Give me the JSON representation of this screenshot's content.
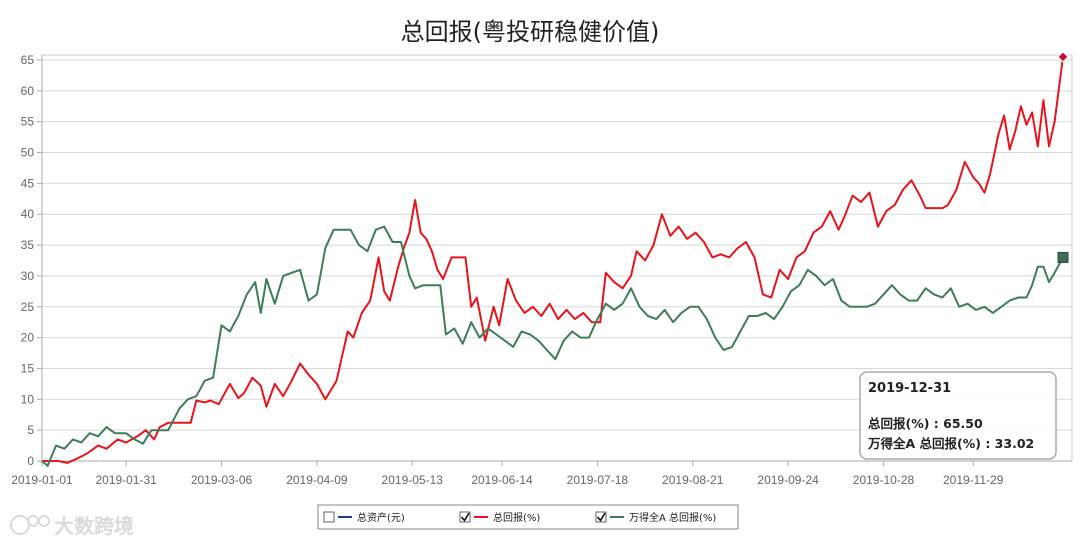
{
  "chart_data": {
    "type": "line",
    "title": "总回报(粤投研稳健价值)",
    "ylim": [
      0,
      65
    ],
    "yticks": [
      0,
      5,
      10,
      15,
      20,
      25,
      30,
      35,
      40,
      45,
      50,
      55,
      60,
      65
    ],
    "xlim": [
      "2019-01-01",
      "2019-12-31"
    ],
    "xticks": [
      "2019-01-01",
      "2019-01-31",
      "2019-03-06",
      "2019-04-09",
      "2019-05-13",
      "2019-06-14",
      "2019-07-18",
      "2019-08-21",
      "2019-09-24",
      "2019-10-28",
      "2019-11-29"
    ],
    "grid": true,
    "series": [
      {
        "name": "总回报(%)",
        "color": "#e8141c",
        "points": [
          [
            "2019-01-01",
            0
          ],
          [
            "2019-01-07",
            0
          ],
          [
            "2019-01-10",
            -0.3
          ],
          [
            "2019-01-14",
            0.5
          ],
          [
            "2019-01-17",
            1.2
          ],
          [
            "2019-01-21",
            2.5
          ],
          [
            "2019-01-24",
            2.0
          ],
          [
            "2019-01-28",
            3.5
          ],
          [
            "2019-01-31",
            3.0
          ],
          [
            "2019-02-04",
            4.0
          ],
          [
            "2019-02-07",
            5.0
          ],
          [
            "2019-02-10",
            3.5
          ],
          [
            "2019-02-12",
            5.5
          ],
          [
            "2019-02-15",
            6.2
          ],
          [
            "2019-02-19",
            6.2
          ],
          [
            "2019-02-23",
            6.2
          ],
          [
            "2019-02-25",
            9.8
          ],
          [
            "2019-02-28",
            9.5
          ],
          [
            "2019-03-02",
            9.8
          ],
          [
            "2019-03-05",
            9.2
          ],
          [
            "2019-03-09",
            12.5
          ],
          [
            "2019-03-12",
            10.2
          ],
          [
            "2019-03-14",
            11.0
          ],
          [
            "2019-03-17",
            13.5
          ],
          [
            "2019-03-20",
            12.2
          ],
          [
            "2019-03-22",
            8.8
          ],
          [
            "2019-03-25",
            12.5
          ],
          [
            "2019-03-28",
            10.5
          ],
          [
            "2019-03-31",
            13.0
          ],
          [
            "2019-04-03",
            15.8
          ],
          [
            "2019-04-06",
            14.0
          ],
          [
            "2019-04-09",
            12.5
          ],
          [
            "2019-04-12",
            10.0
          ],
          [
            "2019-04-14",
            11.5
          ],
          [
            "2019-04-16",
            13.0
          ],
          [
            "2019-04-20",
            21.0
          ],
          [
            "2019-04-22",
            20.0
          ],
          [
            "2019-04-25",
            24.0
          ],
          [
            "2019-04-28",
            26.0
          ],
          [
            "2019-05-01",
            33.0
          ],
          [
            "2019-05-03",
            27.5
          ],
          [
            "2019-05-05",
            26.0
          ],
          [
            "2019-05-08",
            31.5
          ],
          [
            "2019-05-10",
            34.5
          ],
          [
            "2019-05-12",
            37.0
          ],
          [
            "2019-05-14",
            42.3
          ],
          [
            "2019-05-16",
            37.0
          ],
          [
            "2019-05-18",
            36.0
          ],
          [
            "2019-05-20",
            34.0
          ],
          [
            "2019-05-22",
            31.0
          ],
          [
            "2019-05-24",
            29.5
          ],
          [
            "2019-05-27",
            33.0
          ],
          [
            "2019-05-30",
            33.0
          ],
          [
            "2019-06-01",
            33.0
          ],
          [
            "2019-06-03",
            25.0
          ],
          [
            "2019-06-05",
            26.5
          ],
          [
            "2019-06-08",
            19.5
          ],
          [
            "2019-06-11",
            25.0
          ],
          [
            "2019-06-13",
            22.0
          ],
          [
            "2019-06-16",
            29.5
          ],
          [
            "2019-06-19",
            26.0
          ],
          [
            "2019-06-22",
            24.0
          ],
          [
            "2019-06-25",
            25.0
          ],
          [
            "2019-06-28",
            23.5
          ],
          [
            "2019-07-01",
            25.5
          ],
          [
            "2019-07-04",
            23.0
          ],
          [
            "2019-07-07",
            24.5
          ],
          [
            "2019-07-10",
            23.0
          ],
          [
            "2019-07-13",
            24.0
          ],
          [
            "2019-07-16",
            22.5
          ],
          [
            "2019-07-19",
            22.5
          ],
          [
            "2019-07-21",
            30.5
          ],
          [
            "2019-07-24",
            29.0
          ],
          [
            "2019-07-27",
            28.0
          ],
          [
            "2019-07-30",
            30.0
          ],
          [
            "2019-08-01",
            34.0
          ],
          [
            "2019-08-04",
            32.5
          ],
          [
            "2019-08-07",
            35.0
          ],
          [
            "2019-08-10",
            40.0
          ],
          [
            "2019-08-13",
            36.5
          ],
          [
            "2019-08-16",
            38.0
          ],
          [
            "2019-08-19",
            36.0
          ],
          [
            "2019-08-22",
            37.0
          ],
          [
            "2019-08-25",
            35.5
          ],
          [
            "2019-08-28",
            33.0
          ],
          [
            "2019-08-31",
            33.5
          ],
          [
            "2019-09-03",
            33.0
          ],
          [
            "2019-09-06",
            34.5
          ],
          [
            "2019-09-09",
            35.5
          ],
          [
            "2019-09-12",
            33.0
          ],
          [
            "2019-09-15",
            27.0
          ],
          [
            "2019-09-18",
            26.5
          ],
          [
            "2019-09-21",
            31.0
          ],
          [
            "2019-09-24",
            29.5
          ],
          [
            "2019-09-27",
            33.0
          ],
          [
            "2019-09-30",
            34.0
          ],
          [
            "2019-10-03",
            37.0
          ],
          [
            "2019-10-06",
            38.0
          ],
          [
            "2019-10-09",
            40.5
          ],
          [
            "2019-10-12",
            37.5
          ],
          [
            "2019-10-14",
            39.5
          ],
          [
            "2019-10-17",
            43.0
          ],
          [
            "2019-10-20",
            42.0
          ],
          [
            "2019-10-23",
            43.5
          ],
          [
            "2019-10-26",
            38.0
          ],
          [
            "2019-10-29",
            40.5
          ],
          [
            "2019-11-01",
            41.5
          ],
          [
            "2019-11-04",
            44.0
          ],
          [
            "2019-11-07",
            45.5
          ],
          [
            "2019-11-10",
            43.0
          ],
          [
            "2019-11-12",
            41.0
          ],
          [
            "2019-11-15",
            41.0
          ],
          [
            "2019-11-18",
            41.0
          ],
          [
            "2019-11-20",
            41.5
          ],
          [
            "2019-11-23",
            44.0
          ],
          [
            "2019-11-26",
            48.5
          ],
          [
            "2019-11-29",
            46.0
          ],
          [
            "2019-12-01",
            45.0
          ],
          [
            "2019-12-03",
            43.5
          ],
          [
            "2019-12-05",
            46.5
          ],
          [
            "2019-12-08",
            53.0
          ],
          [
            "2019-12-10",
            56.0
          ],
          [
            "2019-12-12",
            50.5
          ],
          [
            "2019-12-14",
            53.5
          ],
          [
            "2019-12-16",
            57.5
          ],
          [
            "2019-12-18",
            54.5
          ],
          [
            "2019-12-20",
            56.5
          ],
          [
            "2019-12-22",
            51.0
          ],
          [
            "2019-12-24",
            58.5
          ],
          [
            "2019-12-26",
            51.0
          ],
          [
            "2019-12-28",
            55.0
          ],
          [
            "2019-12-31",
            65.5
          ]
        ]
      },
      {
        "name": "万得全A 总回报(%)",
        "color": "#3e7d5a",
        "points": [
          [
            "2019-01-01",
            0
          ],
          [
            "2019-01-03",
            -0.8
          ],
          [
            "2019-01-06",
            2.5
          ],
          [
            "2019-01-09",
            2.0
          ],
          [
            "2019-01-12",
            3.5
          ],
          [
            "2019-01-15",
            3.0
          ],
          [
            "2019-01-18",
            4.5
          ],
          [
            "2019-01-21",
            4.0
          ],
          [
            "2019-01-24",
            5.5
          ],
          [
            "2019-01-27",
            4.5
          ],
          [
            "2019-01-31",
            4.5
          ],
          [
            "2019-02-03",
            3.5
          ],
          [
            "2019-02-06",
            2.8
          ],
          [
            "2019-02-09",
            5.0
          ],
          [
            "2019-02-12",
            5.0
          ],
          [
            "2019-02-15",
            5.0
          ],
          [
            "2019-02-19",
            8.5
          ],
          [
            "2019-02-22",
            10.0
          ],
          [
            "2019-02-25",
            10.5
          ],
          [
            "2019-02-28",
            13.0
          ],
          [
            "2019-03-03",
            13.5
          ],
          [
            "2019-03-06",
            22.0
          ],
          [
            "2019-03-09",
            21.0
          ],
          [
            "2019-03-12",
            23.5
          ],
          [
            "2019-03-15",
            27.0
          ],
          [
            "2019-03-18",
            29.0
          ],
          [
            "2019-03-20",
            24.0
          ],
          [
            "2019-03-22",
            29.5
          ],
          [
            "2019-03-25",
            25.5
          ],
          [
            "2019-03-28",
            30.0
          ],
          [
            "2019-03-31",
            30.5
          ],
          [
            "2019-04-03",
            31.0
          ],
          [
            "2019-04-06",
            26.0
          ],
          [
            "2019-04-09",
            27.0
          ],
          [
            "2019-04-12",
            34.5
          ],
          [
            "2019-04-15",
            37.5
          ],
          [
            "2019-04-18",
            37.5
          ],
          [
            "2019-04-21",
            37.5
          ],
          [
            "2019-04-24",
            35.0
          ],
          [
            "2019-04-27",
            34.0
          ],
          [
            "2019-04-30",
            37.5
          ],
          [
            "2019-05-03",
            38.0
          ],
          [
            "2019-05-06",
            35.5
          ],
          [
            "2019-05-09",
            35.5
          ],
          [
            "2019-05-12",
            30.0
          ],
          [
            "2019-05-14",
            28.0
          ],
          [
            "2019-05-17",
            28.5
          ],
          [
            "2019-05-20",
            28.5
          ],
          [
            "2019-05-23",
            28.5
          ],
          [
            "2019-05-25",
            20.5
          ],
          [
            "2019-05-28",
            21.5
          ],
          [
            "2019-05-31",
            19.0
          ],
          [
            "2019-06-03",
            22.5
          ],
          [
            "2019-06-06",
            20.0
          ],
          [
            "2019-06-09",
            21.5
          ],
          [
            "2019-06-12",
            20.5
          ],
          [
            "2019-06-15",
            19.5
          ],
          [
            "2019-06-18",
            18.5
          ],
          [
            "2019-06-21",
            21.0
          ],
          [
            "2019-06-24",
            20.5
          ],
          [
            "2019-06-27",
            19.5
          ],
          [
            "2019-06-30",
            18.0
          ],
          [
            "2019-07-03",
            16.5
          ],
          [
            "2019-07-06",
            19.5
          ],
          [
            "2019-07-09",
            21.0
          ],
          [
            "2019-07-12",
            20.0
          ],
          [
            "2019-07-15",
            20.0
          ],
          [
            "2019-07-18",
            23.0
          ],
          [
            "2019-07-21",
            25.5
          ],
          [
            "2019-07-24",
            24.5
          ],
          [
            "2019-07-27",
            25.5
          ],
          [
            "2019-07-30",
            28.0
          ],
          [
            "2019-08-02",
            25.0
          ],
          [
            "2019-08-05",
            23.5
          ],
          [
            "2019-08-08",
            23.0
          ],
          [
            "2019-08-11",
            24.5
          ],
          [
            "2019-08-14",
            22.5
          ],
          [
            "2019-08-17",
            24.0
          ],
          [
            "2019-08-20",
            25.0
          ],
          [
            "2019-08-23",
            25.0
          ],
          [
            "2019-08-26",
            23.0
          ],
          [
            "2019-08-29",
            20.0
          ],
          [
            "2019-09-01",
            18.0
          ],
          [
            "2019-09-04",
            18.5
          ],
          [
            "2019-09-07",
            21.0
          ],
          [
            "2019-09-10",
            23.5
          ],
          [
            "2019-09-13",
            23.5
          ],
          [
            "2019-09-16",
            24.0
          ],
          [
            "2019-09-19",
            23.0
          ],
          [
            "2019-09-22",
            25.0
          ],
          [
            "2019-09-25",
            27.5
          ],
          [
            "2019-09-28",
            28.5
          ],
          [
            "2019-10-01",
            31.0
          ],
          [
            "2019-10-04",
            30.0
          ],
          [
            "2019-10-07",
            28.5
          ],
          [
            "2019-10-10",
            29.5
          ],
          [
            "2019-10-13",
            26.0
          ],
          [
            "2019-10-16",
            25.0
          ],
          [
            "2019-10-19",
            25.0
          ],
          [
            "2019-10-22",
            25.0
          ],
          [
            "2019-10-25",
            25.5
          ],
          [
            "2019-10-28",
            27.0
          ],
          [
            "2019-10-31",
            28.5
          ],
          [
            "2019-11-03",
            27.0
          ],
          [
            "2019-11-06",
            26.0
          ],
          [
            "2019-11-09",
            26.0
          ],
          [
            "2019-11-12",
            28.0
          ],
          [
            "2019-11-15",
            27.0
          ],
          [
            "2019-11-18",
            26.5
          ],
          [
            "2019-11-21",
            28.0
          ],
          [
            "2019-11-24",
            25.0
          ],
          [
            "2019-11-27",
            25.5
          ],
          [
            "2019-11-30",
            24.5
          ],
          [
            "2019-12-03",
            25.0
          ],
          [
            "2019-12-06",
            24.0
          ],
          [
            "2019-12-09",
            25.0
          ],
          [
            "2019-12-12",
            26.0
          ],
          [
            "2019-12-15",
            26.5
          ],
          [
            "2019-12-18",
            26.5
          ],
          [
            "2019-12-20",
            28.5
          ],
          [
            "2019-12-22",
            31.5
          ],
          [
            "2019-12-24",
            31.5
          ],
          [
            "2019-12-26",
            29.0
          ],
          [
            "2019-12-28",
            30.5
          ],
          [
            "2019-12-31",
            33.0
          ]
        ]
      }
    ],
    "legend": {
      "placement": "bottom-center",
      "items": [
        {
          "label": "总资产(元)",
          "checked": false,
          "color": "#1a3e9c"
        },
        {
          "label": "总回报(%)",
          "checked": true,
          "color": "#e8141c"
        },
        {
          "label": "万得全A 总回报(%)",
          "checked": true,
          "color": "#3e7d5a"
        }
      ]
    },
    "tooltip": {
      "date": "2019-12-31",
      "line1": "总回报(%) : 65.50",
      "line2": "万得全A 总回报(%) : 33.02"
    }
  },
  "watermark": "大数跨境"
}
